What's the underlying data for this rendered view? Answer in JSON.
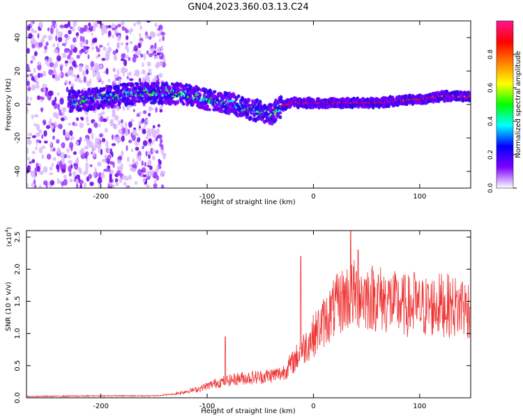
{
  "title": "GN04.2023.360.03.13.C24",
  "chart_data": [
    {
      "type": "heatmap",
      "xlabel": "Height of straight line (km)",
      "ylabel": "Frequency (Hz)",
      "xlim": [
        -270,
        148
      ],
      "ylim": [
        -50,
        50
      ],
      "x_ticks": [
        -200,
        -100,
        0,
        100
      ],
      "y_ticks": [
        -40,
        -20,
        0,
        20,
        40
      ],
      "colorbar": {
        "label": "Normalized spectral amplitude",
        "range": [
          0,
          1
        ],
        "ticks": [
          "0.0",
          "0.2",
          "0.4",
          "0.6",
          "0.8"
        ],
        "colors": [
          "#ffffff",
          "#7f00ff",
          "#0000ff",
          "#00ffff",
          "#00ff00",
          "#ffff00",
          "#ff7f00",
          "#ff0000",
          "#ff1493"
        ]
      },
      "ridge_frequency": {
        "x": [
          -225,
          -200,
          -180,
          -160,
          -140,
          -120,
          -100,
          -80,
          -65,
          -50,
          -40,
          -30,
          -20,
          0,
          20,
          40,
          60,
          75,
          90,
          100,
          110,
          120,
          140,
          148
        ],
        "y": [
          2,
          4,
          6,
          7,
          7,
          6,
          3,
          1,
          -2,
          -4,
          -6,
          -1,
          1,
          1,
          1,
          1,
          1,
          2,
          3,
          3,
          4,
          5,
          5,
          5
        ]
      },
      "noise_region_x": [
        -270,
        -140
      ],
      "grid": false
    },
    {
      "type": "line",
      "xlabel": "Height of straight line (km)",
      "ylabel": "SNR (10 * v/v)",
      "y_multiplier": "x10^4",
      "xlim": [
        -270,
        148
      ],
      "ylim": [
        0,
        2.6
      ],
      "x_ticks": [
        -200,
        -100,
        0,
        100
      ],
      "y_ticks": [
        "0.0",
        "0.5",
        "1.0",
        "1.5",
        "2.0",
        "2.5"
      ],
      "color": "#ee3333",
      "envelope": {
        "x": [
          -270,
          -200,
          -150,
          -130,
          -110,
          -90,
          -70,
          -50,
          -30,
          -20,
          -10,
          0,
          10,
          20,
          30,
          40,
          60,
          80,
          100,
          120,
          140,
          148
        ],
        "y": [
          0.02,
          0.03,
          0.03,
          0.06,
          0.12,
          0.22,
          0.28,
          0.3,
          0.35,
          0.5,
          0.7,
          0.9,
          1.1,
          1.3,
          1.45,
          1.5,
          1.45,
          1.35,
          1.3,
          1.35,
          1.3,
          1.3
        ]
      },
      "peaks": [
        {
          "x": -83,
          "y": 0.95
        },
        {
          "x": -12,
          "y": 2.2
        },
        {
          "x": 35,
          "y": 2.6
        },
        {
          "x": 42,
          "y": 2.3
        },
        {
          "x": 55,
          "y": 2.0
        },
        {
          "x": 95,
          "y": 1.95
        },
        {
          "x": 140,
          "y": 1.8
        }
      ],
      "grid": false
    }
  ]
}
